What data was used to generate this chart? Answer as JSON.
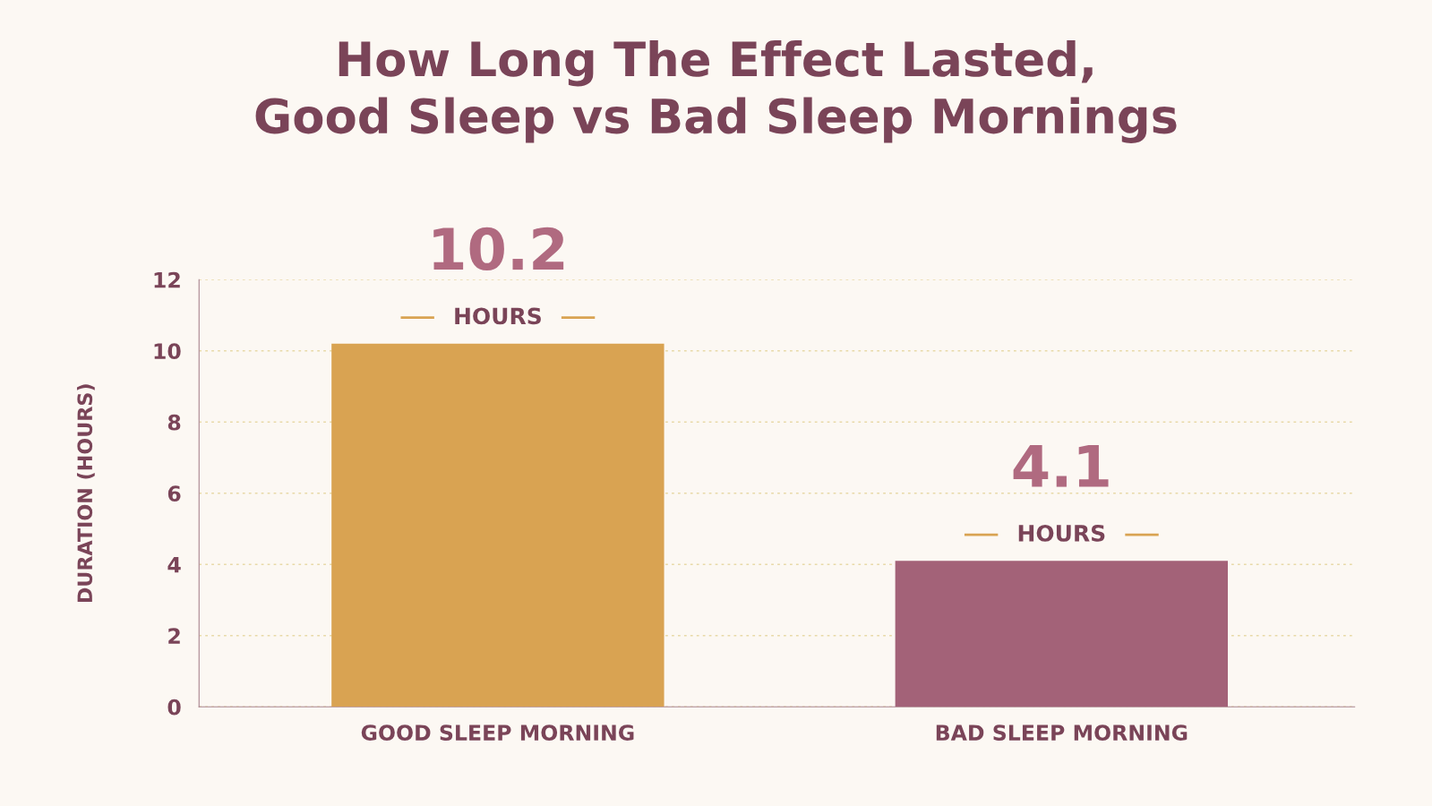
{
  "chart_data": {
    "type": "bar",
    "title": "How Long The Effect Lasted,\nGood Sleep vs Bad Sleep Mornings",
    "ylabel": "DURATION (HOURS)",
    "categories": [
      "GOOD SLEEP MORNING",
      "BAD SLEEP MORNING"
    ],
    "values": [
      10.2,
      4.1
    ],
    "colors": [
      "#d9a352",
      "#a36278"
    ],
    "value_labels": [
      "10.2",
      "4.1"
    ],
    "annotations": [
      {
        "text": "HOURS",
        "x": "GOOD SLEEP MORNING",
        "y": 10.2
      },
      {
        "text": "HOURS",
        "x": "BAD SLEEP MORNING",
        "y": 4.1
      }
    ],
    "ylim": [
      0,
      12
    ],
    "yticks": [
      0,
      2,
      4,
      6,
      8,
      10,
      12
    ],
    "grid": "y",
    "legend": false
  }
}
